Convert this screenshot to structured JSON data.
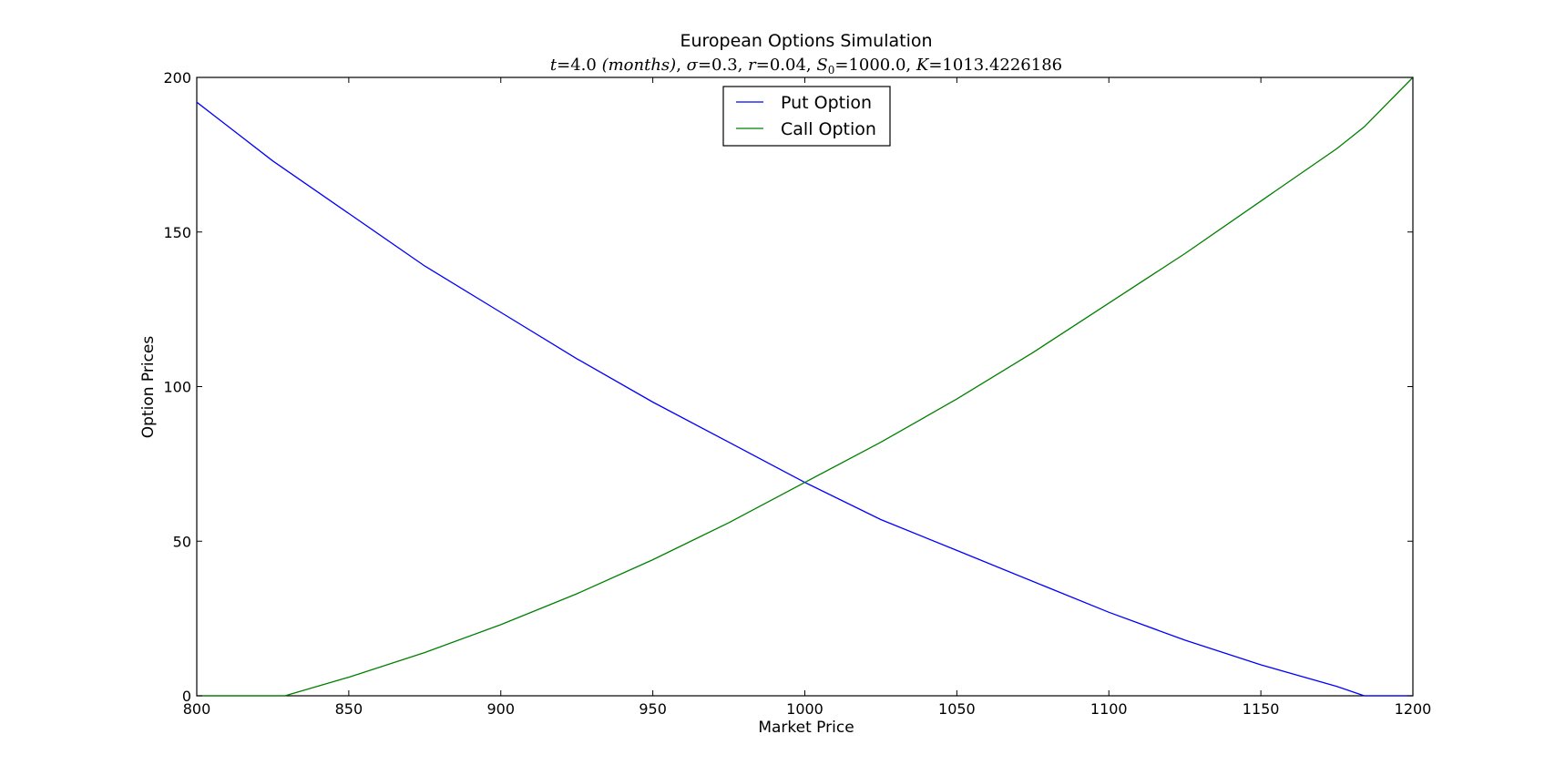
{
  "chart_data": {
    "type": "line",
    "title": "European Options Simulation",
    "subtitle": {
      "t_label": "t",
      "t_value": "4.0",
      "t_unit": "(months)",
      "sigma_label": "σ",
      "sigma_value": "0.3",
      "r_label": "r",
      "r_value": "0.04",
      "s0_label": "S",
      "s0_sub": "0",
      "s0_value": "1000.0",
      "k_label": "K",
      "k_value": "1013.4226186"
    },
    "xlabel": "Market Price",
    "ylabel": "Option Prices",
    "xlim": [
      800,
      1200
    ],
    "ylim": [
      0,
      200
    ],
    "xticks": [
      800,
      850,
      900,
      950,
      1000,
      1050,
      1100,
      1150,
      1200
    ],
    "yticks": [
      0,
      50,
      100,
      150,
      200
    ],
    "grid": false,
    "legend_position": "top-center",
    "series": [
      {
        "name": "Put Option",
        "color": "#0000ff",
        "x": [
          800,
          825,
          850,
          875,
          900,
          925,
          950,
          975,
          1000,
          1025,
          1050,
          1075,
          1100,
          1125,
          1150,
          1175,
          1184,
          1200
        ],
        "y": [
          192,
          173,
          156,
          139,
          124,
          109,
          95,
          82,
          69,
          57,
          47,
          37,
          27,
          18,
          10,
          3,
          0,
          0
        ]
      },
      {
        "name": "Call Option",
        "color": "#008000",
        "x": [
          800,
          829,
          850,
          875,
          900,
          925,
          950,
          975,
          1000,
          1025,
          1050,
          1075,
          1100,
          1125,
          1150,
          1175,
          1184,
          1200
        ],
        "y": [
          0,
          0,
          6,
          14,
          23,
          33,
          44,
          56,
          69,
          82,
          96,
          111,
          127,
          143,
          160,
          177,
          184,
          200
        ]
      }
    ]
  }
}
